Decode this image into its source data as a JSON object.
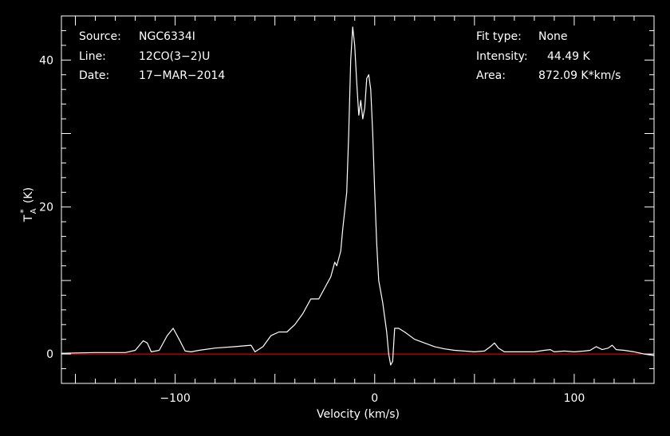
{
  "header": {
    "left": [
      {
        "label": "Source:",
        "value": "NGC6334I"
      },
      {
        "label": "Line:",
        "value": "12CO(3−2)U"
      },
      {
        "label": "Date:",
        "value": "17−MAR−2014"
      }
    ],
    "right": [
      {
        "label": "Fit type:",
        "value": "None"
      },
      {
        "label": "Intensity:",
        "value": "44.49 K"
      },
      {
        "label": "Area:",
        "value": "872.09 K*km/s"
      }
    ]
  },
  "colors": {
    "background": "#000000",
    "trace": "#ffffff",
    "baseline": "#ff0000",
    "frame": "#ffffff"
  },
  "chart_data": {
    "type": "line",
    "xlabel": "Velocity (km/s)",
    "ylabel": "T",
    "ylabel_super": "*",
    "ylabel_sub": "A",
    "ylabel_unit": "(K)",
    "xlim": [
      -157,
      140
    ],
    "ylim": [
      -4,
      46
    ],
    "x_ticks": [
      -100,
      0,
      100
    ],
    "x_tick_labels": [
      "−100",
      "0",
      "100"
    ],
    "y_ticks": [
      0,
      20,
      40
    ],
    "y_tick_labels": [
      "0",
      "20",
      "40"
    ],
    "baseline": 0,
    "series": [
      {
        "x": [
          -157,
          -140,
          -125,
          -120,
          -116,
          -114,
          -112,
          -108,
          -104,
          -101,
          -98,
          -95,
          -92,
          -88,
          -80,
          -70,
          -62,
          -60,
          -56,
          -52,
          -48,
          -44,
          -40,
          -36,
          -32,
          -28,
          -24,
          -22,
          -20,
          -19,
          -17,
          -16,
          -14,
          -13,
          -12,
          -11,
          -10,
          -9,
          -8,
          -7,
          -6,
          -5,
          -4,
          -3,
          -2,
          -1,
          0,
          1,
          2,
          4,
          5,
          6,
          7,
          8,
          9,
          10,
          12,
          15,
          20,
          25,
          30,
          35,
          40,
          45,
          50,
          55,
          58,
          60,
          62,
          65,
          70,
          80,
          85,
          88,
          90,
          95,
          100,
          105,
          108,
          111,
          114,
          117,
          119,
          121,
          125,
          130,
          135,
          140
        ],
        "y": [
          0.1,
          0.2,
          0.2,
          0.5,
          1.8,
          1.5,
          0.3,
          0.5,
          2.5,
          3.5,
          2.0,
          0.4,
          0.3,
          0.5,
          0.8,
          1.0,
          1.2,
          0.3,
          1.0,
          2.5,
          3.0,
          3.0,
          4.0,
          5.5,
          7.5,
          7.5,
          9.5,
          10.5,
          12.5,
          12.0,
          14.0,
          17.0,
          22.0,
          30.0,
          40.0,
          44.5,
          42.0,
          37.0,
          32.5,
          34.5,
          32.0,
          33.5,
          37.5,
          38.0,
          36.0,
          30.0,
          22.0,
          15.0,
          10.0,
          7.0,
          5.0,
          3.0,
          0.0,
          -1.5,
          -1.0,
          3.5,
          3.5,
          3.0,
          2.0,
          1.5,
          1.0,
          0.7,
          0.5,
          0.4,
          0.3,
          0.4,
          1.0,
          1.5,
          0.8,
          0.3,
          0.3,
          0.3,
          0.5,
          0.6,
          0.3,
          0.4,
          0.3,
          0.4,
          0.5,
          1.0,
          0.6,
          0.8,
          1.2,
          0.6,
          0.5,
          0.3,
          0.0,
          -0.2
        ]
      }
    ]
  }
}
